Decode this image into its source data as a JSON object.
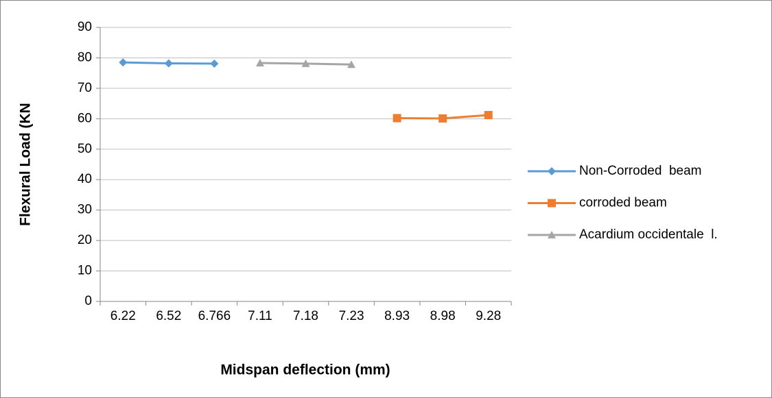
{
  "chart_data": {
    "type": "line",
    "x_label": "Midspan deflection (mm)",
    "y_label": "Flexural Load (KN",
    "categories": [
      "6.22",
      "6.52",
      "6.766",
      "7.11",
      "7.18",
      "7.23",
      "8.93",
      "8.98",
      "9.28"
    ],
    "series": [
      {
        "name": "Non-Corroded  beam",
        "color": "#5b9bd5",
        "marker": "diamond",
        "values": [
          78.5,
          78.2,
          78.1,
          null,
          null,
          null,
          null,
          null,
          null
        ]
      },
      {
        "name": "corroded beam",
        "color": "#ed7d31",
        "marker": "square",
        "values": [
          null,
          null,
          null,
          null,
          null,
          null,
          60.2,
          60.1,
          61.2
        ]
      },
      {
        "name": "Acardium occidentale  l.",
        "color": "#a5a5a5",
        "marker": "triangle",
        "values": [
          null,
          null,
          null,
          78.3,
          78.1,
          77.8,
          null,
          null,
          null
        ]
      }
    ],
    "ylim": [
      0,
      90
    ],
    "yticks": [
      0,
      10,
      20,
      30,
      40,
      50,
      60,
      70,
      80,
      90
    ],
    "grid": true,
    "legend": "right"
  }
}
